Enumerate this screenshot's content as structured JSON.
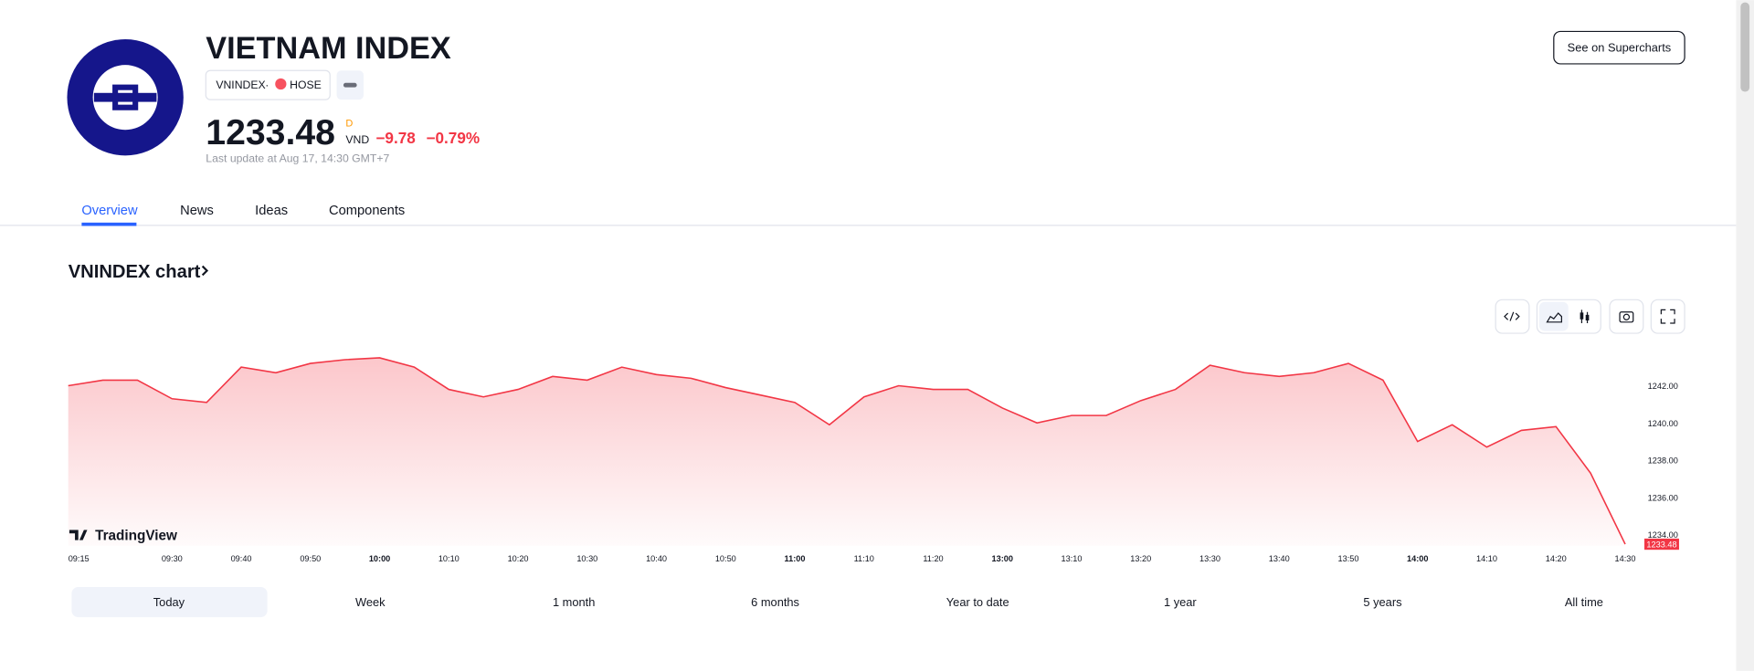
{
  "header": {
    "title": "VIETNAM INDEX",
    "symbol": "VNINDEX",
    "exchange": "HOSE",
    "price": "1233.48",
    "price_suffix": "D",
    "currency": "VND",
    "change": "−9.78",
    "change_percent": "−0.79%",
    "last_update": "Last update at Aug 17, 14:30 GMT+7",
    "button": "See on Supercharts"
  },
  "tabs": [
    "Overview",
    "News",
    "Ideas",
    "Components"
  ],
  "chart_heading": "VNINDEX chart",
  "chart_data": {
    "type": "line",
    "color": "#f23645",
    "x": [
      "09:15",
      "09:20",
      "09:25",
      "09:30",
      "09:35",
      "09:40",
      "09:45",
      "09:50",
      "09:55",
      "10:00",
      "10:05",
      "10:10",
      "10:15",
      "10:20",
      "10:25",
      "10:30",
      "10:35",
      "10:40",
      "10:45",
      "10:50",
      "10:55",
      "11:00",
      "11:05",
      "11:10",
      "11:15",
      "11:20",
      "11:25",
      "13:00",
      "13:05",
      "13:10",
      "13:15",
      "13:20",
      "13:25",
      "13:30",
      "13:35",
      "13:40",
      "13:45",
      "13:50",
      "13:55",
      "14:00",
      "14:05",
      "14:10",
      "14:15",
      "14:20",
      "14:25",
      "14:30"
    ],
    "values": [
      1242.0,
      1242.3,
      1242.3,
      1241.3,
      1241.1,
      1243.0,
      1242.7,
      1243.2,
      1243.4,
      1243.5,
      1243.0,
      1241.8,
      1241.4,
      1241.8,
      1242.5,
      1242.3,
      1243.0,
      1242.6,
      1242.4,
      1241.9,
      1241.5,
      1241.1,
      1239.9,
      1241.4,
      1242.0,
      1241.8,
      1241.8,
      1240.8,
      1240.0,
      1240.4,
      1240.4,
      1241.2,
      1241.8,
      1243.1,
      1242.7,
      1242.5,
      1242.7,
      1243.2,
      1242.3,
      1239.0,
      1239.9,
      1238.7,
      1239.6,
      1239.8,
      1237.3,
      1233.48
    ],
    "ylim": [
      1233.4,
      1244.4
    ],
    "yticks": [
      {
        "value": 1234,
        "label": "1234.00"
      },
      {
        "value": 1236,
        "label": "1236.00"
      },
      {
        "value": 1238,
        "label": "1238.00"
      },
      {
        "value": 1240,
        "label": "1240.00"
      },
      {
        "value": 1242,
        "label": "1242.00"
      }
    ],
    "xticks": [
      "09:15",
      "09:30",
      "09:40",
      "09:50",
      "10:00",
      "10:10",
      "10:20",
      "10:30",
      "10:40",
      "10:50",
      "11:00",
      "11:10",
      "11:20",
      "13:00",
      "13:10",
      "13:20",
      "13:30",
      "13:40",
      "13:50",
      "14:00",
      "14:10",
      "14:20",
      "14:30"
    ],
    "watermark": "TradingView"
  },
  "ranges": [
    "Today",
    "Week",
    "1 month",
    "6 months",
    "Year to date",
    "1 year",
    "5 years",
    "All time"
  ]
}
